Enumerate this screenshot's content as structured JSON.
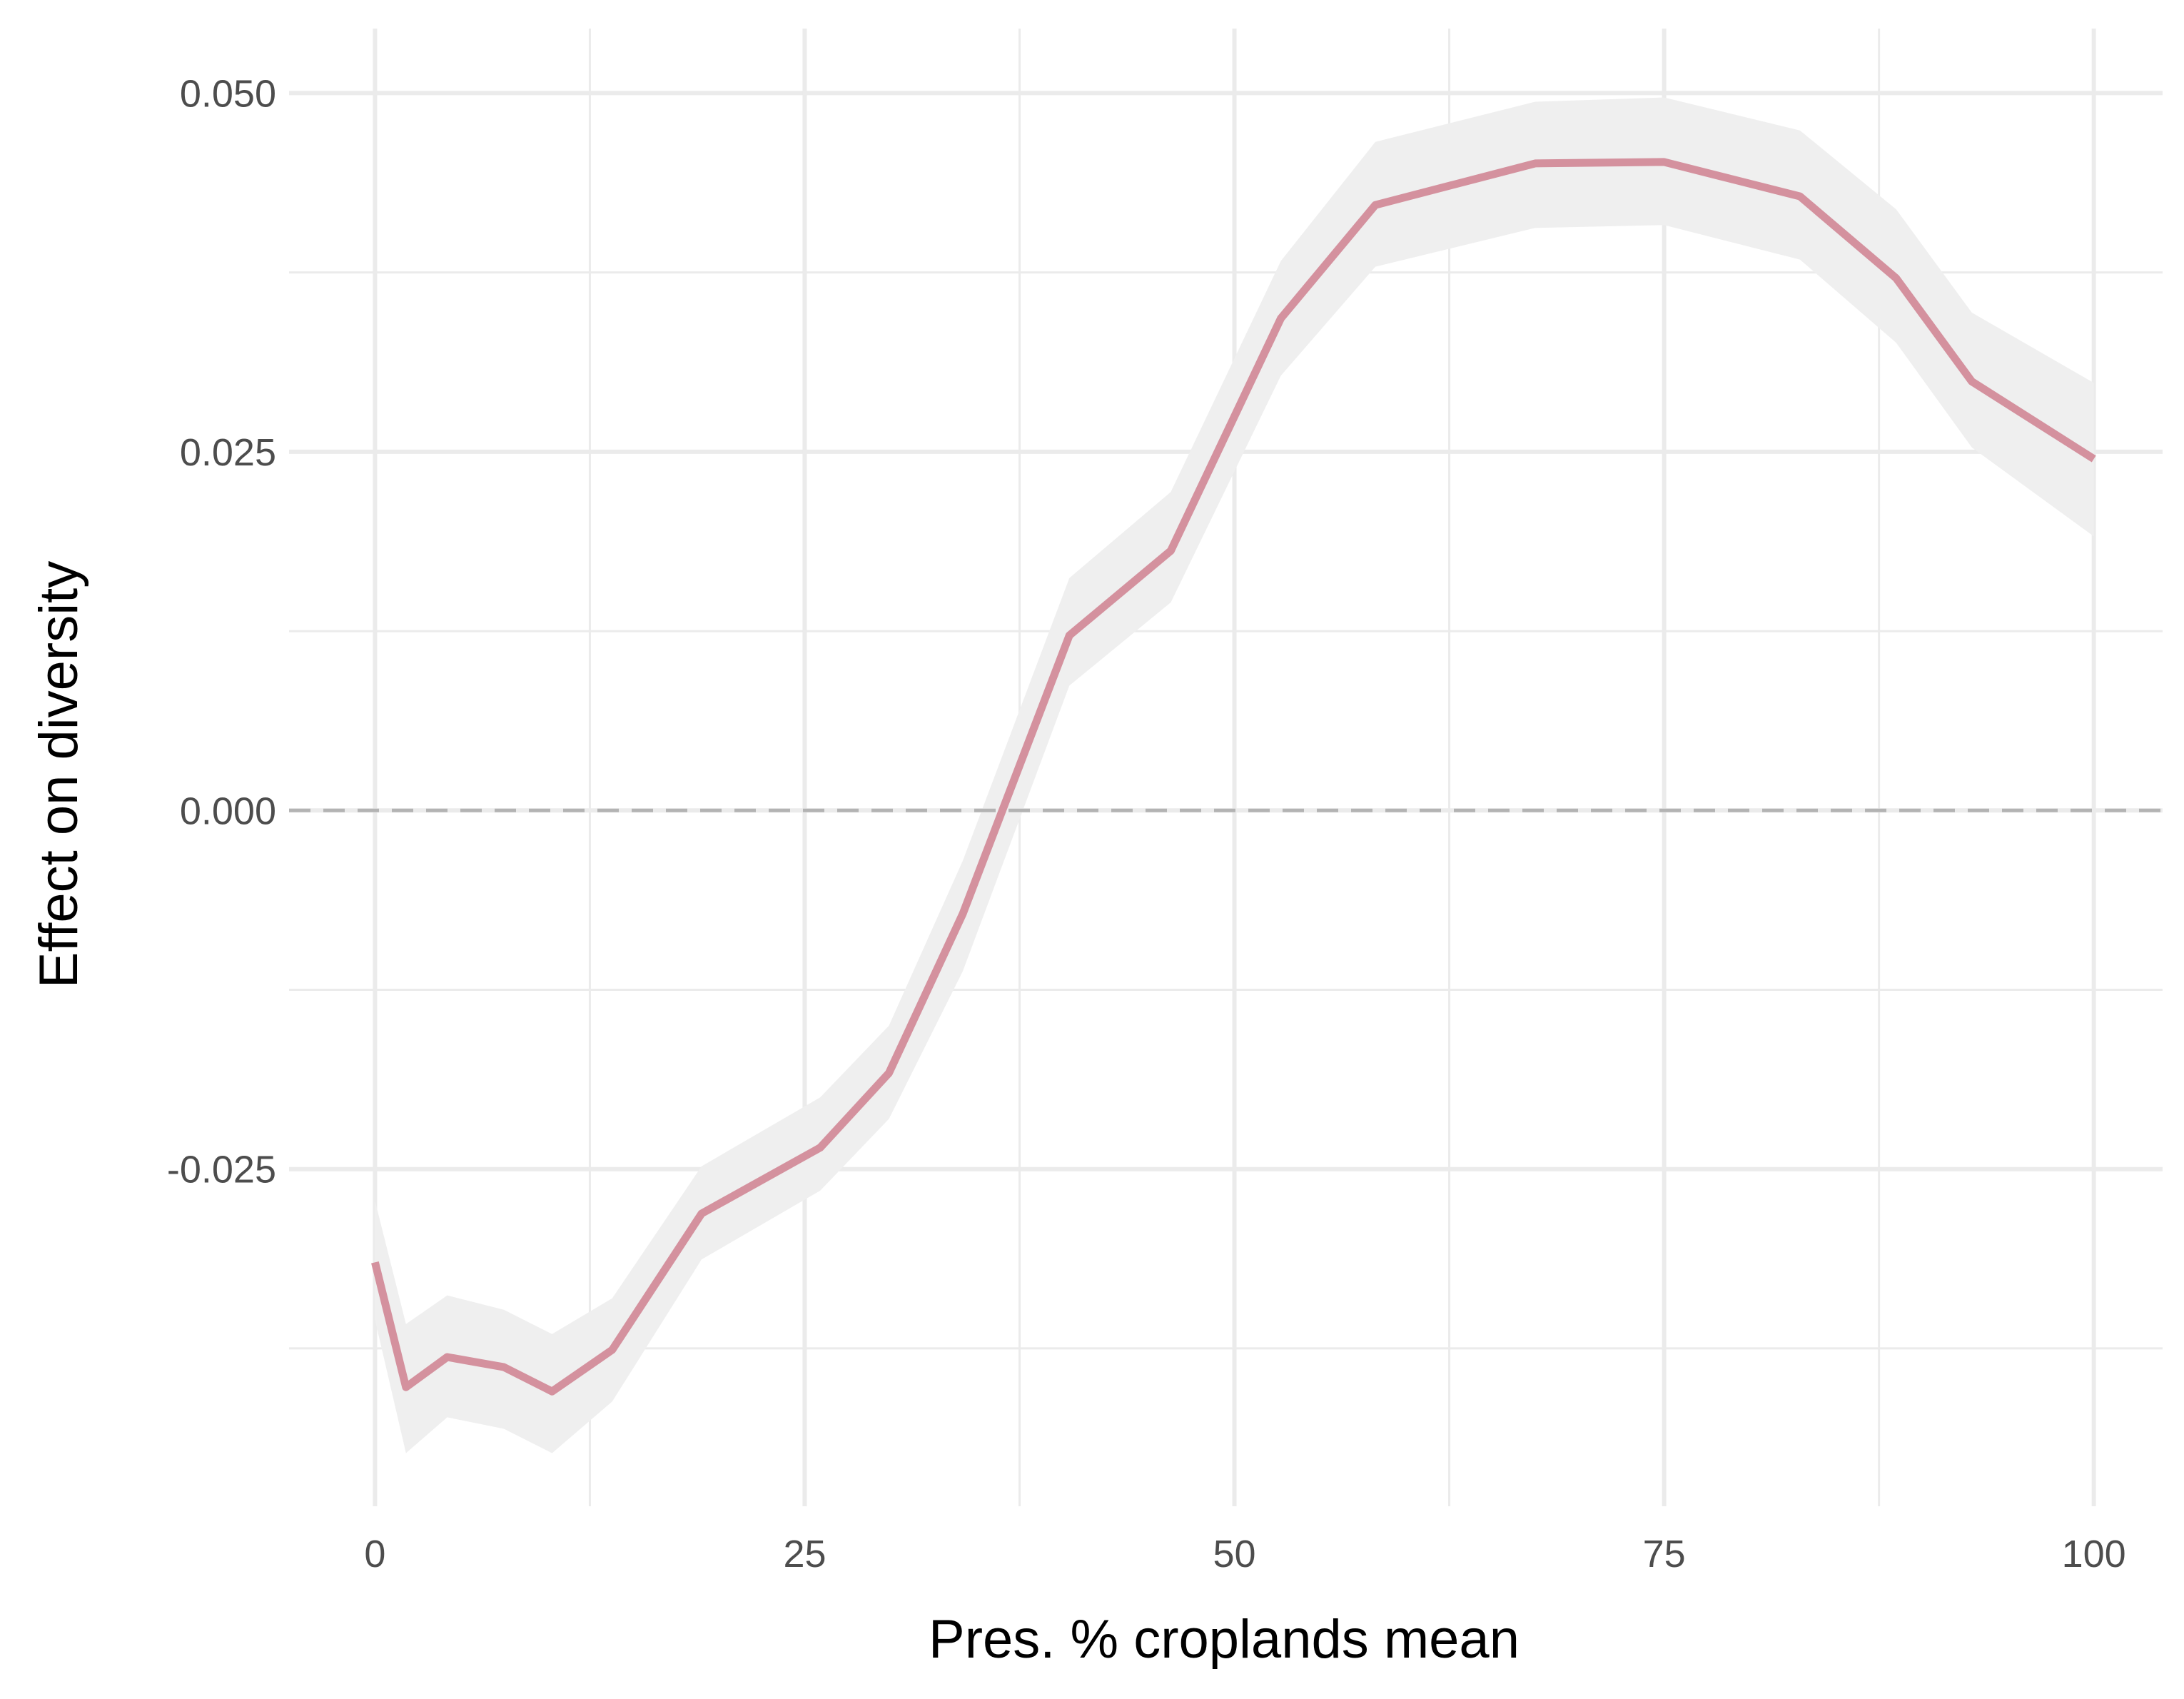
{
  "chart_data": {
    "type": "line",
    "title": "",
    "xlabel": "Pres. % croplands mean",
    "ylabel": "Effect on diversity",
    "xlim": [
      -5,
      104
    ],
    "ylim": [
      -0.0485,
      0.0545
    ],
    "x_ticks": [
      0,
      25,
      50,
      75,
      100
    ],
    "x_tick_labels": [
      "0",
      "25",
      "50",
      "75",
      "100"
    ],
    "y_ticks": [
      -0.025,
      0.0,
      0.025,
      0.05
    ],
    "y_tick_labels": [
      "-0.025",
      "0.000",
      "0.025",
      "0.050"
    ],
    "x_minor_grid": [
      12.5,
      37.5,
      62.5,
      87.5
    ],
    "y_minor_grid": [
      -0.0375,
      -0.0125,
      0.0125,
      0.0375
    ],
    "grid": true,
    "reference_line": {
      "y": 0.0,
      "style": "dashed",
      "color": "#b3b3b3"
    },
    "series": [
      {
        "color": "#d4919e",
        "ribbon_color": "#efefef",
        "x": [
          0,
          1.8,
          4.2,
          7.5,
          10.3,
          13.8,
          19,
          25.9,
          29.9,
          34.2,
          40.4,
          46.3,
          52.7,
          58.2,
          67.5,
          75,
          82.9,
          88.5,
          92.9,
          100
        ],
        "y": [
          -0.0315,
          -0.0402,
          -0.0381,
          -0.0388,
          -0.0405,
          -0.0376,
          -0.0281,
          -0.0235,
          -0.0183,
          -0.0072,
          0.0122,
          0.0181,
          0.0343,
          0.0422,
          0.0451,
          0.0452,
          0.0428,
          0.0371,
          0.0299,
          0.0245
        ],
        "lower": [
          -0.0355,
          -0.0448,
          -0.0423,
          -0.0431,
          -0.0448,
          -0.0412,
          -0.0313,
          -0.0265,
          -0.0215,
          -0.0112,
          0.0087,
          0.0145,
          0.0303,
          0.0379,
          0.0406,
          0.0408,
          0.0384,
          0.0326,
          0.0253,
          0.0191
        ],
        "upper": [
          -0.0272,
          -0.0358,
          -0.0338,
          -0.0348,
          -0.0365,
          -0.034,
          -0.0248,
          -0.02,
          -0.015,
          -0.0035,
          0.0162,
          0.0222,
          0.0383,
          0.0466,
          0.0494,
          0.0497,
          0.0474,
          0.0419,
          0.0347,
          0.0298
        ]
      }
    ]
  }
}
